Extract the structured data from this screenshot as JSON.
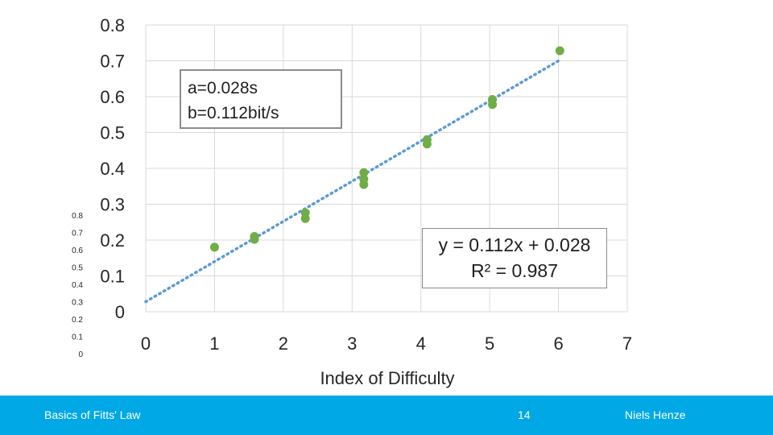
{
  "chart_data": {
    "type": "scatter",
    "xlabel": "Index of Difficulty",
    "ylabel": "",
    "xlim": [
      0,
      7
    ],
    "ylim": [
      0,
      0.8
    ],
    "x_ticks": [
      "0",
      "1",
      "2",
      "3",
      "4",
      "5",
      "6",
      "7"
    ],
    "y_ticks": [
      "0",
      "0.1",
      "0.2",
      "0.3",
      "0.4",
      "0.5",
      "0.6",
      "0.7",
      "0.8"
    ],
    "secondary_y_ticks": [
      "0",
      "0.1",
      "0.2",
      "0.3",
      "0.4",
      "0.5",
      "0.6",
      "0.7",
      "0.8"
    ],
    "grid": true,
    "point_color": "#70ad47",
    "trend_color": "#5b9bd5",
    "points": [
      {
        "x": 1.0,
        "y": 0.18
      },
      {
        "x": 1.58,
        "y": 0.21
      },
      {
        "x": 1.58,
        "y": 0.202
      },
      {
        "x": 2.32,
        "y": 0.276
      },
      {
        "x": 2.32,
        "y": 0.26
      },
      {
        "x": 3.17,
        "y": 0.388
      },
      {
        "x": 3.17,
        "y": 0.37
      },
      {
        "x": 3.17,
        "y": 0.355
      },
      {
        "x": 4.09,
        "y": 0.48
      },
      {
        "x": 4.09,
        "y": 0.468
      },
      {
        "x": 5.04,
        "y": 0.592
      },
      {
        "x": 5.04,
        "y": 0.578
      },
      {
        "x": 6.02,
        "y": 0.728
      }
    ],
    "trendline": {
      "slope": 0.112,
      "intercept": 0.028,
      "x_range": [
        0,
        6.02
      ]
    },
    "annotations": {
      "params_line1": "a=0.028s",
      "params_line2": "b=0.112bit/s",
      "equation": "y = 0.112x + 0.028",
      "r_squared": "R² = 0.987"
    }
  },
  "footer": {
    "title": "Basics of Fitts' Law",
    "page_number": "14",
    "author": "Niels Henze"
  }
}
